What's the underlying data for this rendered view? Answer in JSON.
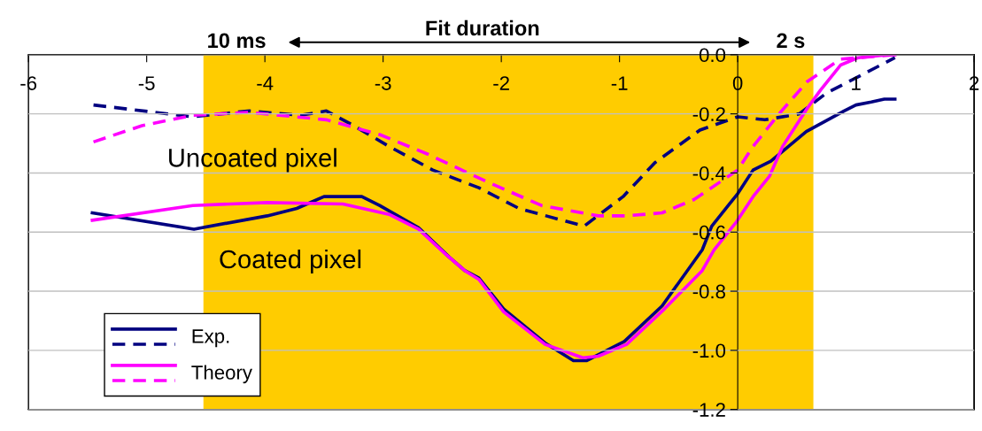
{
  "chart_data": {
    "type": "line",
    "annotations": [
      "10 ms",
      "Fit duration",
      "2 s",
      "Uncoated pixel",
      "Coated pixel"
    ],
    "xlim": [
      -6,
      2
    ],
    "xticks": [
      -6,
      -5,
      -4,
      -3,
      -2,
      -1,
      0,
      1,
      2
    ],
    "ylim": [
      -1.2,
      0
    ],
    "yticks": [
      -1.2,
      {
        "value": -1.0,
        "label": "-1.0"
      },
      -0.8,
      -0.6,
      -0.4,
      -0.2,
      {
        "value": 0.0,
        "label": "0.0"
      }
    ],
    "grid": "y",
    "legend": "bottom left",
    "marker": "none",
    "bands": [
      {
        "axis": "x",
        "from": -4.52,
        "to": 0.64,
        "color": "#ffcc00"
      }
    ],
    "series": [
      {
        "name": "Exp.",
        "color": "#000080",
        "line_style": "solid",
        "x": [
          -5.46,
          -4.6,
          -3.98,
          -3.73,
          -3.5,
          -3.18,
          -3.03,
          -2.7,
          -2.44,
          -2.31,
          -2.19,
          -1.98,
          -1.63,
          -1.39,
          -1.28,
          -0.96,
          -0.64,
          -0.3,
          -0.22,
          -0.08,
          0,
          0.13,
          0.28,
          0.43,
          0.58,
          0.9,
          1.0,
          1.13,
          1.24,
          1.33
        ],
        "values": [
          -0.535,
          -0.59,
          -0.545,
          -0.52,
          -0.48,
          -0.48,
          -0.51,
          -0.585,
          -0.685,
          -0.73,
          -0.755,
          -0.86,
          -0.975,
          -1.035,
          -1.035,
          -0.97,
          -0.85,
          -0.66,
          -0.58,
          -0.51,
          -0.47,
          -0.39,
          -0.36,
          -0.31,
          -0.26,
          -0.19,
          -0.17,
          -0.16,
          -0.15,
          -0.15
        ]
      },
      {
        "color": "#000080",
        "line_style": "dashed",
        "x": [
          -5.45,
          -4.61,
          -4.13,
          -3.7,
          -3.48,
          -3.27,
          -2.95,
          -2.58,
          -2.19,
          -1.85,
          -1.3,
          -0.97,
          -0.7,
          -0.32,
          0,
          0.23,
          0.52,
          0.75,
          1.33
        ],
        "values": [
          -0.17,
          -0.21,
          -0.19,
          -0.205,
          -0.19,
          -0.235,
          -0.31,
          -0.39,
          -0.45,
          -0.52,
          -0.58,
          -0.48,
          -0.365,
          -0.255,
          -0.21,
          -0.22,
          -0.2,
          -0.13,
          -0.01
        ]
      },
      {
        "name": "Theory",
        "color": "#ff00ff",
        "line_style": "solid",
        "x": [
          -5.46,
          -4.61,
          -3.98,
          -3.34,
          -2.95,
          -2.7,
          -2.47,
          -2.31,
          -2.19,
          -1.98,
          -1.63,
          -1.31,
          -1.18,
          -0.94,
          -0.62,
          -0.3,
          -0.2,
          -0.01,
          0.13,
          0.27,
          0.38,
          0.59,
          0.7,
          0.87,
          1.02,
          1.26,
          1.33
        ],
        "values": [
          -0.56,
          -0.51,
          -0.5,
          -0.505,
          -0.54,
          -0.59,
          -0.675,
          -0.73,
          -0.76,
          -0.87,
          -0.98,
          -1.025,
          -1.02,
          -0.98,
          -0.86,
          -0.73,
          -0.66,
          -0.565,
          -0.48,
          -0.41,
          -0.31,
          -0.18,
          -0.12,
          -0.035,
          -0.01,
          0.0,
          0.0
        ]
      },
      {
        "color": "#ff00ff",
        "line_style": "dashed",
        "x": [
          -5.45,
          -5.04,
          -4.61,
          -4.13,
          -3.48,
          -3.03,
          -2.63,
          -2.12,
          -1.66,
          -1.18,
          -0.94,
          -0.64,
          -0.37,
          0,
          0.13,
          0.35,
          0.59,
          0.87,
          1.33
        ],
        "values": [
          -0.295,
          -0.24,
          -0.205,
          -0.195,
          -0.22,
          -0.27,
          -0.335,
          -0.43,
          -0.51,
          -0.545,
          -0.545,
          -0.535,
          -0.49,
          -0.39,
          -0.31,
          -0.2,
          -0.09,
          -0.015,
          0.0
        ]
      }
    ]
  }
}
